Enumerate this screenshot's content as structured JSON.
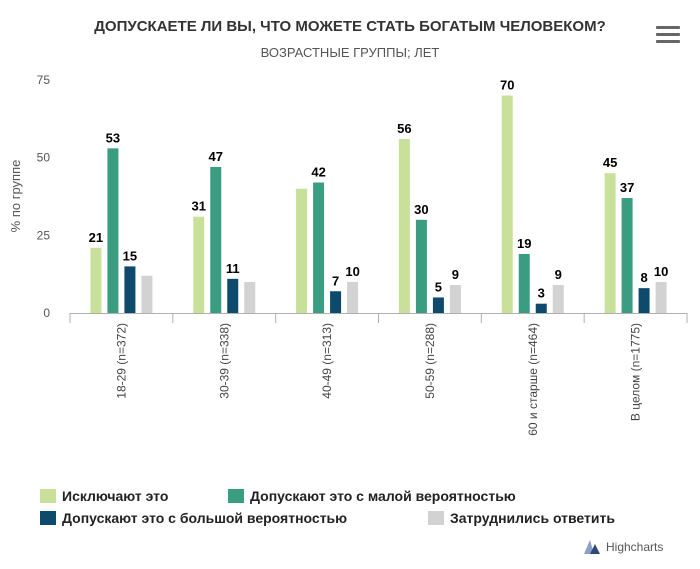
{
  "title": "ДОПУСКАЕТЕ ЛИ ВЫ, ЧТО МОЖЕТЕ СТАТЬ БОГАТЫМ ЧЕЛОВЕКОМ?",
  "subtitle": "ВОЗРАСТНЫЕ ГРУППЫ; ЛЕТ",
  "menu_icon": "hamburger-menu-icon",
  "credits": "Highcharts",
  "chart_data": {
    "type": "bar",
    "title": "ДОПУСКАЕТЕ ЛИ ВЫ, ЧТО МОЖЕТЕ СТАТЬ БОГАТЫМ ЧЕЛОВЕКОМ?",
    "subtitle": "ВОЗРАСТНЫЕ ГРУППЫ; ЛЕТ",
    "xlabel": "",
    "ylabel": "% по группе",
    "ylim": [
      0,
      75
    ],
    "yticks": [
      0,
      25,
      50,
      75
    ],
    "grid": false,
    "legend_position": "bottom",
    "categories": [
      "18-29 (n=372)",
      "30-39 (n=338)",
      "40-49 (n=313)",
      "50-59 (n=288)",
      "60 и старше (n=464)",
      "В целом (n=1775)"
    ],
    "series": [
      {
        "name": "Исключают это",
        "color": "#c9e09b",
        "show_labels": true,
        "values": [
          21,
          31,
          40,
          56,
          70,
          45
        ]
      },
      {
        "name": "Допускают это с малой вероятностью",
        "color": "#3a9d82",
        "show_labels": true,
        "values": [
          53,
          47,
          42,
          30,
          19,
          37
        ]
      },
      {
        "name": "Допускают это с большой вероятностью",
        "color": "#0d4a6b",
        "show_labels": true,
        "values": [
          15,
          11,
          7,
          5,
          3,
          8
        ]
      },
      {
        "name": "Затруднились ответить",
        "color": "#d2d2d2",
        "show_labels": true,
        "values": [
          12,
          10,
          10,
          9,
          9,
          10
        ]
      }
    ],
    "data_labels": [
      [
        "21",
        "31",
        "",
        "56",
        "70",
        "45"
      ],
      [
        "53",
        "47",
        "42",
        "30",
        "19",
        "37"
      ],
      [
        "15",
        "11",
        "7",
        "5",
        "3",
        "8"
      ],
      [
        "",
        "",
        "10",
        "9",
        "9",
        "10"
      ]
    ]
  }
}
